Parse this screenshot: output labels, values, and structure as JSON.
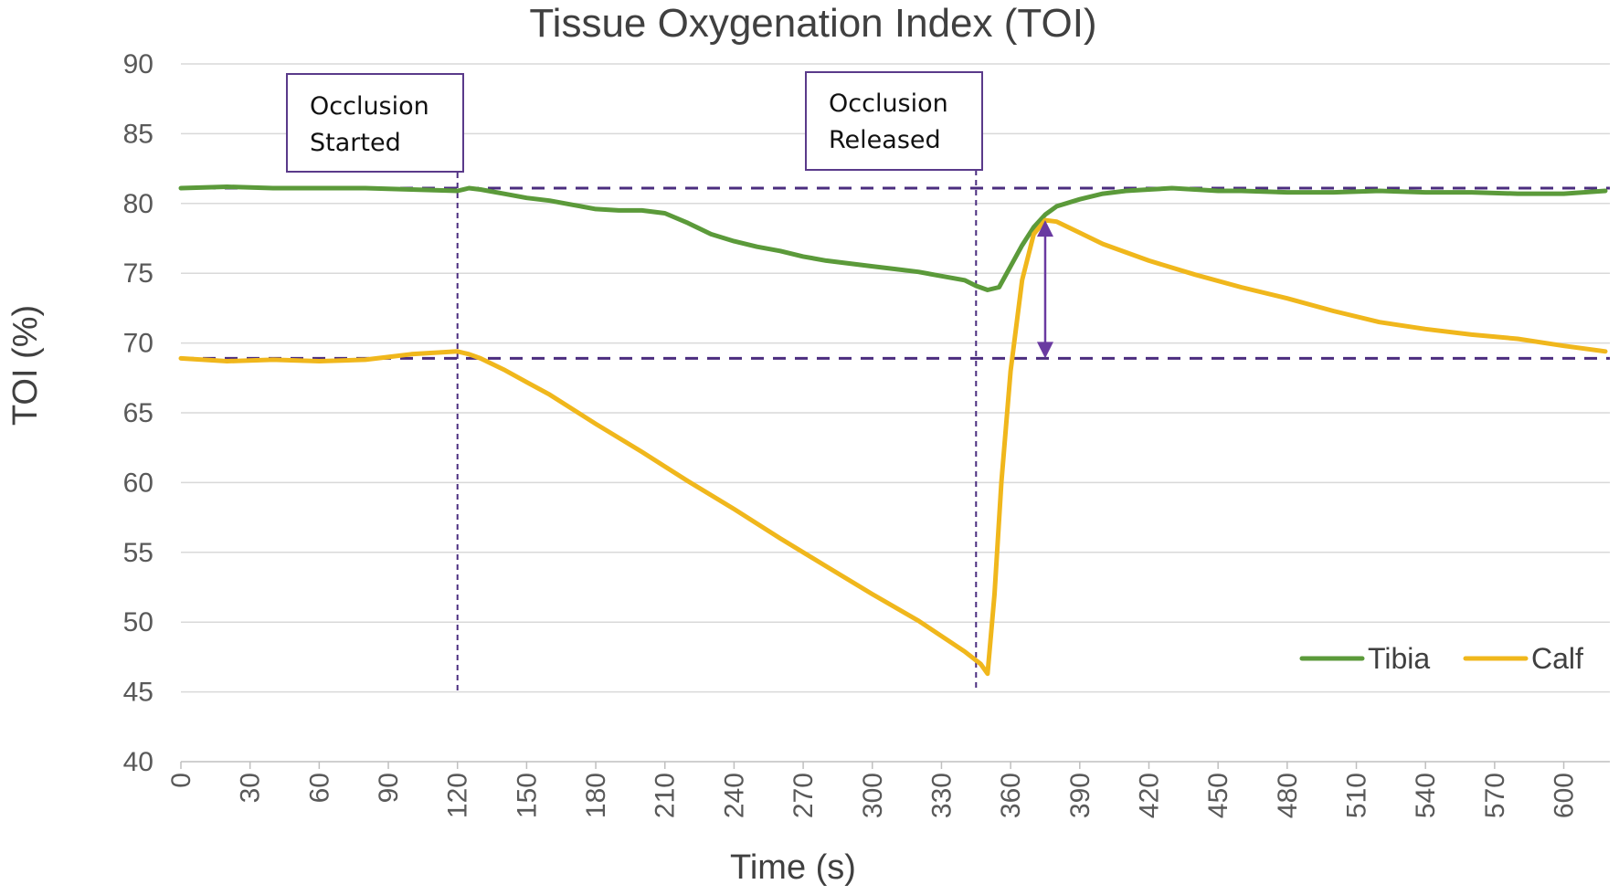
{
  "chart_data": {
    "type": "line",
    "title": "Tissue Oxygenation Index (TOI)",
    "xlabel": "Time (s)",
    "ylabel": "TOI (%)",
    "xlim": [
      0,
      620
    ],
    "ylim": [
      40,
      90
    ],
    "xticks": [
      0,
      30,
      60,
      90,
      120,
      150,
      180,
      210,
      240,
      270,
      300,
      330,
      360,
      390,
      420,
      450,
      480,
      510,
      540,
      570,
      600
    ],
    "yticks": [
      40,
      45,
      50,
      55,
      60,
      65,
      70,
      75,
      80,
      85,
      90
    ],
    "grid": "horizontal",
    "legend": "bottom-right",
    "series": [
      {
        "name": "Tibia",
        "color": "#5b9a3a",
        "x": [
          0,
          20,
          40,
          60,
          80,
          100,
          120,
          125,
          130,
          140,
          150,
          160,
          170,
          180,
          190,
          200,
          210,
          220,
          230,
          240,
          250,
          260,
          270,
          280,
          290,
          300,
          310,
          320,
          330,
          340,
          345,
          350,
          355,
          360,
          365,
          370,
          375,
          380,
          390,
          400,
          410,
          420,
          430,
          440,
          450,
          460,
          480,
          500,
          520,
          540,
          560,
          580,
          600,
          618
        ],
        "y": [
          81.1,
          81.2,
          81.1,
          81.1,
          81.1,
          81.0,
          80.9,
          81.1,
          81.0,
          80.7,
          80.4,
          80.2,
          79.9,
          79.6,
          79.5,
          79.5,
          79.3,
          78.6,
          77.8,
          77.3,
          76.9,
          76.6,
          76.2,
          75.9,
          75.7,
          75.5,
          75.3,
          75.1,
          74.8,
          74.5,
          74.1,
          73.8,
          74.0,
          75.5,
          77.0,
          78.3,
          79.2,
          79.8,
          80.3,
          80.7,
          80.9,
          81.0,
          81.1,
          81.0,
          80.9,
          80.9,
          80.8,
          80.8,
          80.9,
          80.8,
          80.8,
          80.7,
          80.7,
          80.9
        ]
      },
      {
        "name": "Calf",
        "color": "#f0b71c",
        "x": [
          0,
          20,
          40,
          60,
          80,
          90,
          100,
          110,
          120,
          125,
          130,
          140,
          150,
          160,
          180,
          200,
          220,
          240,
          260,
          280,
          300,
          320,
          340,
          347,
          350,
          353,
          356,
          360,
          365,
          370,
          375,
          380,
          390,
          400,
          420,
          440,
          460,
          480,
          500,
          520,
          540,
          560,
          580,
          600,
          618
        ],
        "y": [
          68.9,
          68.7,
          68.8,
          68.7,
          68.8,
          69.0,
          69.2,
          69.3,
          69.4,
          69.2,
          68.9,
          68.1,
          67.2,
          66.3,
          64.2,
          62.2,
          60.1,
          58.1,
          56.0,
          54.0,
          52.0,
          50.1,
          47.9,
          47.0,
          46.3,
          52.0,
          60.0,
          68.0,
          74.5,
          77.8,
          78.8,
          78.7,
          77.9,
          77.1,
          75.9,
          74.9,
          74.0,
          73.2,
          72.3,
          71.5,
          71.0,
          70.6,
          70.3,
          69.8,
          69.4
        ]
      }
    ],
    "reference_lines": {
      "horizontal": [
        81.1,
        68.9
      ],
      "vertical": [
        120,
        345
      ]
    },
    "annotations": [
      {
        "text_line1": "Occlusion",
        "text_line2": "Started"
      },
      {
        "text_line1": "Occlusion",
        "text_line2": "Released"
      }
    ],
    "difference_arrow": {
      "x": 375,
      "y_top": 78.8,
      "y_bottom": 68.9
    },
    "colors": {
      "reference": "#4b2d7f",
      "arrow": "#6a3aa1",
      "grid": "#d9d9d9",
      "axis": "#bfbfbf"
    }
  }
}
